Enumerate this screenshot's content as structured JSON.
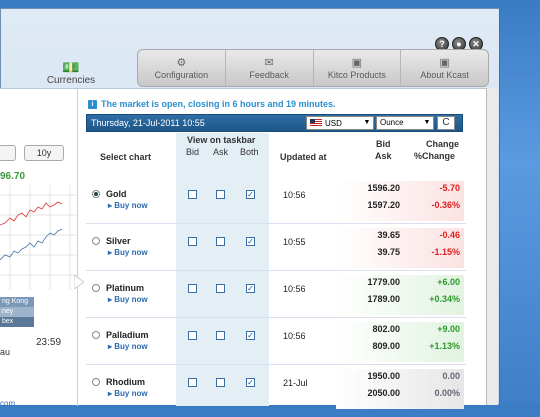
{
  "window_controls": {
    "help": "?",
    "minimize": "●",
    "close": "✕"
  },
  "currencies_tab": {
    "label": "Currencies"
  },
  "nav": [
    {
      "label": "Configuration",
      "icon": "gear-icon"
    },
    {
      "label": "Feedback",
      "icon": "envelope-icon"
    },
    {
      "label": "Kitco Products",
      "icon": "box-icon"
    },
    {
      "label": "About Kcast",
      "icon": "info-icon"
    }
  ],
  "left_pane": {
    "btn_left": "",
    "btn_10y": "10y",
    "value": "96.70",
    "bands": [
      "ng Kong",
      "ney",
      "bex"
    ],
    "time": "23:59",
    "tz": "au",
    "footer": "com"
  },
  "status": {
    "message": "The market is open, closing in 6 hours and 19 minutes."
  },
  "datebar": {
    "date": "Thursday, 21-Jul-2011 10:55",
    "currency": "USD",
    "unit": "Ounce",
    "refresh_icon": "C"
  },
  "headers": {
    "select_chart": "Select chart",
    "view_on_taskbar": "View on taskbar",
    "bid": "Bid",
    "ask": "Ask",
    "both": "Both",
    "updated_at": "Updated at",
    "bid_col": "Bid",
    "ask_col": "Ask",
    "change": "Change",
    "pct_change": "%Change"
  },
  "rows": [
    {
      "metal": "Gold",
      "buy": "▸ Buy now",
      "selected": true,
      "updated": "10:56",
      "bid": "1596.20",
      "ask": "1597.20",
      "change": "-5.70",
      "pct": "-0.36%",
      "trend": "neg"
    },
    {
      "metal": "Silver",
      "buy": "▸ Buy now",
      "selected": false,
      "updated": "10:55",
      "bid": "39.65",
      "ask": "39.75",
      "change": "-0.46",
      "pct": "-1.15%",
      "trend": "neg"
    },
    {
      "metal": "Platinum",
      "buy": "▸ Buy now",
      "selected": false,
      "updated": "10:56",
      "bid": "1779.00",
      "ask": "1789.00",
      "change": "+6.00",
      "pct": "+0.34%",
      "trend": "pos"
    },
    {
      "metal": "Palladium",
      "buy": "▸ Buy now",
      "selected": false,
      "updated": "10:56",
      "bid": "802.00",
      "ask": "809.00",
      "change": "+9.00",
      "pct": "+1.13%",
      "trend": "pos"
    },
    {
      "metal": "Rhodium",
      "buy": "▸ Buy now",
      "selected": false,
      "updated": "21-Jul",
      "bid": "1950.00",
      "ask": "2050.00",
      "change": "0.00",
      "pct": "0.00%",
      "trend": "zero"
    }
  ],
  "colors": {
    "accent": "#2a8fd0",
    "negative": "#e02020",
    "positive": "#2a9a2a",
    "datebar": "#2f6ea6"
  }
}
